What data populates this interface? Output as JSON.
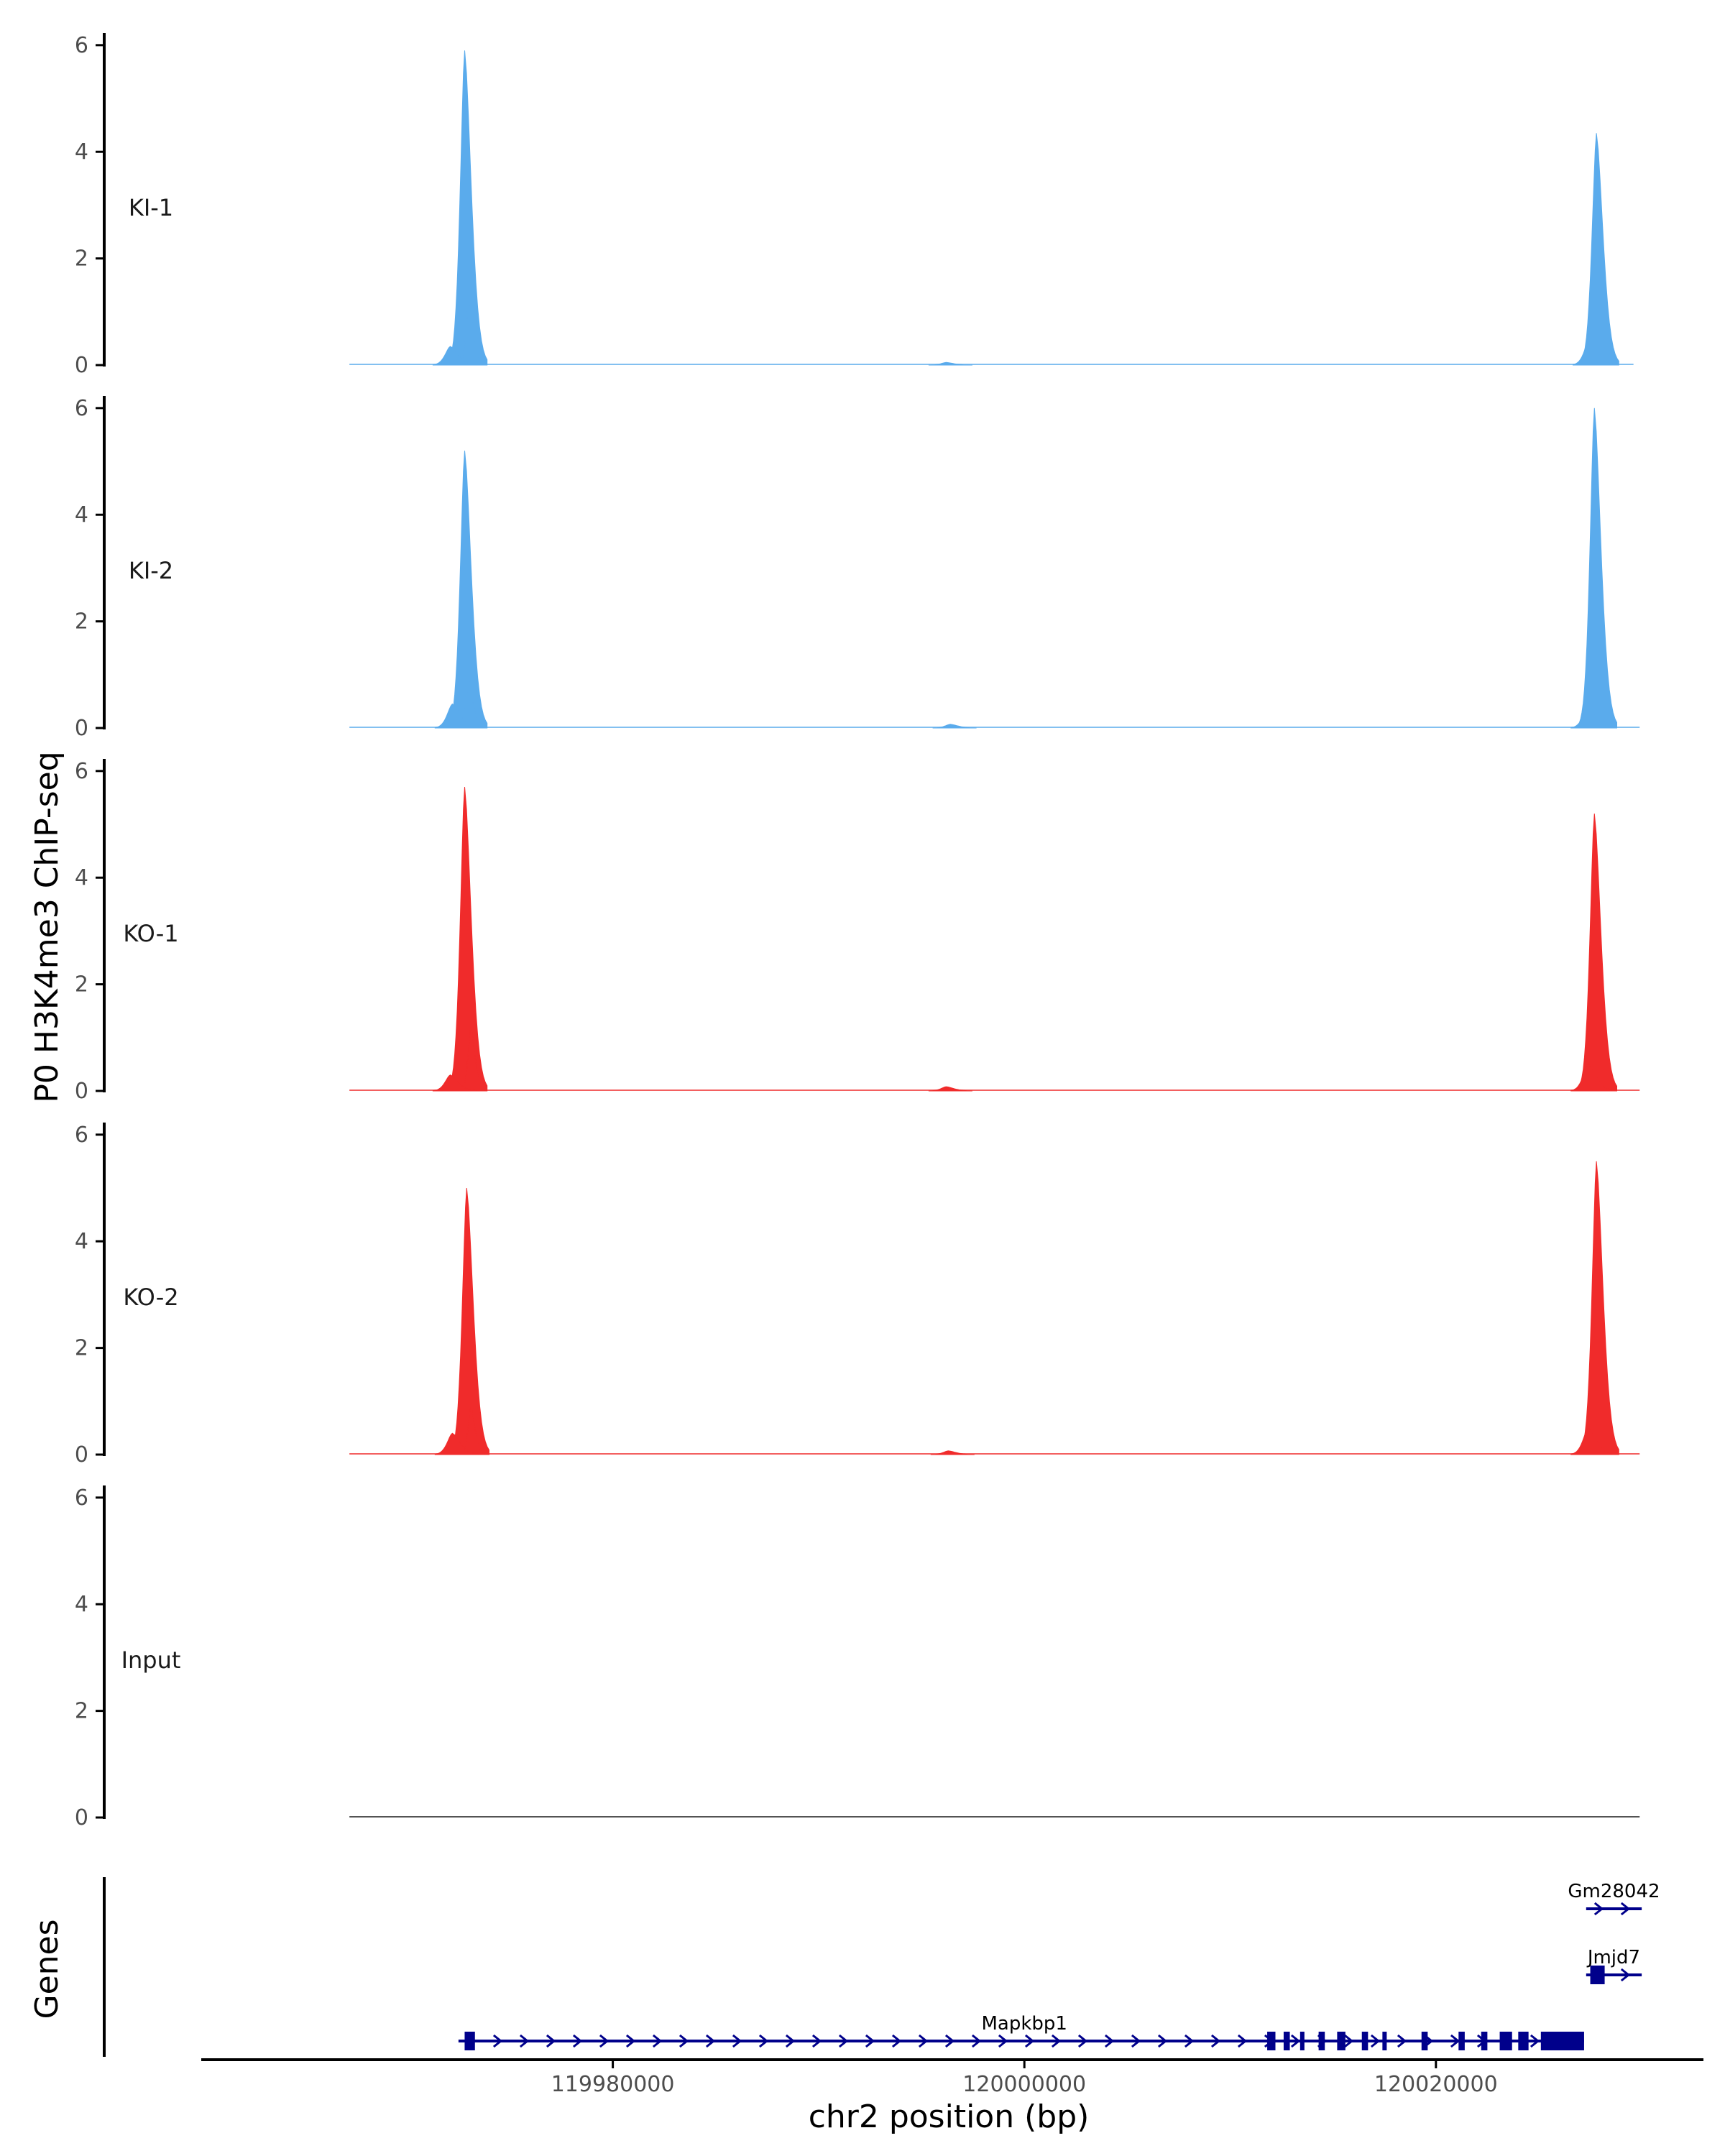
{
  "chart_data": {
    "type": "area",
    "ylabel": "P0 H3K4me3 ChIP-seq",
    "xlabel": "chr2 position (bp)",
    "gene_track_label": "Genes",
    "x_range": [
      119960000,
      120033000
    ],
    "x_ticks": [
      119980000,
      120000000,
      120020000
    ],
    "x_tick_labels": [
      "119980000",
      "120000000",
      "120020000"
    ],
    "y_range": [
      0,
      6.2
    ],
    "y_ticks": [
      0,
      2,
      4,
      6
    ],
    "y_tick_labels": [
      "0",
      "2",
      "4",
      "6"
    ],
    "colors": {
      "KI": "#5aabec",
      "KO": "#f02b2b",
      "Input": "#1a1a1a",
      "gene": "#00008b",
      "axis": "#000000"
    },
    "series": [
      {
        "name": "KI-1",
        "color": "#5aabec",
        "track_start": 119967200,
        "track_end": 120029600,
        "peaks": [
          {
            "pos": 119972800,
            "height": 5.9
          },
          {
            "pos": 119973000,
            "height": 1.2
          },
          {
            "pos": 119972100,
            "height": 0.35
          },
          {
            "pos": 119996200,
            "height": 0.05
          },
          {
            "pos": 120027800,
            "height": 4.35
          },
          {
            "pos": 120027500,
            "height": 0.55
          }
        ]
      },
      {
        "name": "KI-2",
        "color": "#5aabec",
        "track_start": 119967200,
        "track_end": 120029900,
        "peaks": [
          {
            "pos": 119972800,
            "height": 5.2
          },
          {
            "pos": 119973000,
            "height": 0.9
          },
          {
            "pos": 119972200,
            "height": 0.45
          },
          {
            "pos": 119996400,
            "height": 0.07
          },
          {
            "pos": 120027700,
            "height": 6.0
          },
          {
            "pos": 120027400,
            "height": 0.4
          }
        ]
      },
      {
        "name": "KO-1",
        "color": "#f02b2b",
        "track_start": 119967200,
        "track_end": 120029900,
        "peaks": [
          {
            "pos": 119972800,
            "height": 5.7
          },
          {
            "pos": 119973100,
            "height": 1.2
          },
          {
            "pos": 119972100,
            "height": 0.3
          },
          {
            "pos": 119996200,
            "height": 0.08
          },
          {
            "pos": 120027700,
            "height": 5.2
          },
          {
            "pos": 120027400,
            "height": 0.5
          }
        ]
      },
      {
        "name": "KO-2",
        "color": "#f02b2b",
        "track_start": 119967200,
        "track_end": 120029900,
        "peaks": [
          {
            "pos": 119972900,
            "height": 5.0
          },
          {
            "pos": 119973100,
            "height": 0.9
          },
          {
            "pos": 119972200,
            "height": 0.4
          },
          {
            "pos": 119996300,
            "height": 0.07
          },
          {
            "pos": 120027800,
            "height": 5.5
          },
          {
            "pos": 120027400,
            "height": 0.5
          }
        ]
      },
      {
        "name": "Input",
        "color": "#1a1a1a",
        "track_start": 119967200,
        "track_end": 120029900,
        "peaks": []
      }
    ],
    "genes": [
      {
        "name": "Gm28042",
        "start": 120027300,
        "end": 120030000,
        "row": 0,
        "strand": "+",
        "exons": []
      },
      {
        "name": "Jmjd7",
        "start": 120027300,
        "end": 120030000,
        "row": 1,
        "strand": "+",
        "exons": [
          [
            120027500,
            120028200
          ]
        ]
      },
      {
        "name": "Mapkbp1",
        "start": 119972500,
        "end": 120027200,
        "row": 2,
        "strand": "+",
        "exons": [
          [
            119972800,
            119973300
          ],
          [
            120011800,
            120012200
          ],
          [
            120012600,
            120012900
          ],
          [
            120013400,
            120013600
          ],
          [
            120014300,
            120014600
          ],
          [
            120015200,
            120015600
          ],
          [
            120016400,
            120016700
          ],
          [
            120017400,
            120017600
          ],
          [
            120019300,
            120019600
          ],
          [
            120021100,
            120021400
          ],
          [
            120022200,
            120022500
          ],
          [
            120023100,
            120023700
          ],
          [
            120024000,
            120024500
          ],
          [
            120025100,
            120027200
          ]
        ]
      }
    ]
  }
}
